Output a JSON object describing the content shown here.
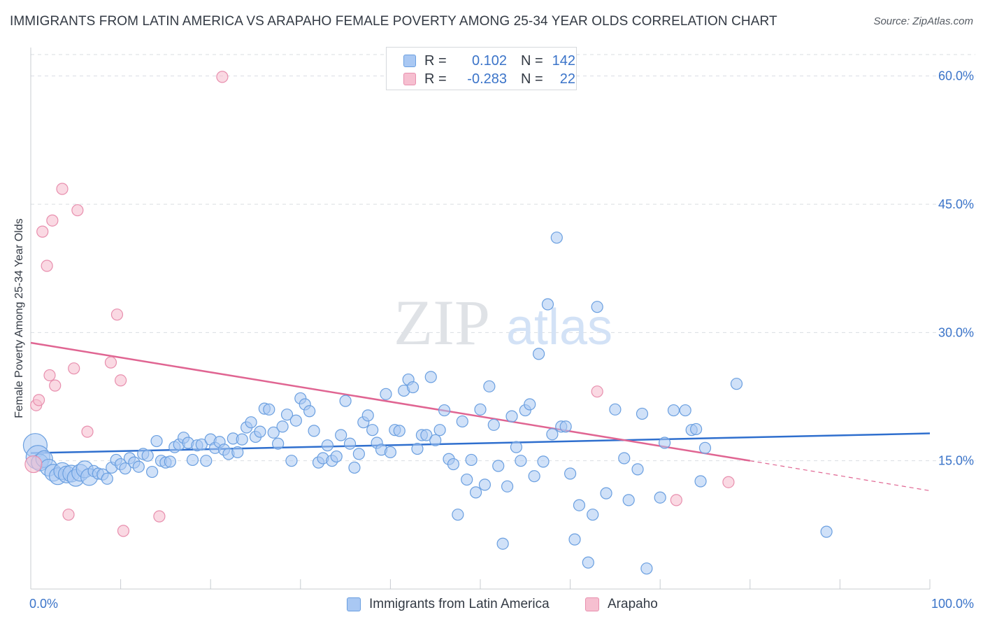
{
  "title": "IMMIGRANTS FROM LATIN AMERICA VS ARAPAHO FEMALE POVERTY AMONG 25-34 YEAR OLDS CORRELATION CHART",
  "source": "Source: ZipAtlas.com",
  "watermark": {
    "zip": "ZIP",
    "atlas": "atlas"
  },
  "legend": {
    "series1": {
      "r_label": "R =",
      "r_value": "0.102",
      "n_label": "N =",
      "n_value": "142"
    },
    "series2": {
      "r_label": "R =",
      "r_value": "-0.283",
      "n_label": "N =",
      "n_value": "22"
    }
  },
  "colors": {
    "blue_fill": "#a9c8f3",
    "blue_stroke": "#6a9fe0",
    "blue_line": "#2f6fce",
    "pink_fill": "#f6bfd0",
    "pink_stroke": "#e88fae",
    "pink_line": "#e06592",
    "axis_text": "#3b74c9",
    "grid": "#d9dde2"
  },
  "chart_data": {
    "type": "scatter",
    "title": "IMMIGRANTS FROM LATIN AMERICA VS ARAPAHO FEMALE POVERTY AMONG 25-34 YEAR OLDS CORRELATION CHART",
    "xlabel": "",
    "ylabel": "Female Poverty Among 25-34 Year Olds",
    "xlim": [
      0,
      100
    ],
    "ylim": [
      0,
      63
    ],
    "x_tick_labels": [
      {
        "value": 0,
        "label": "0.0%"
      },
      {
        "value": 100,
        "label": "100.0%"
      }
    ],
    "y_tick_labels": [
      {
        "value": 15,
        "label": "15.0%"
      },
      {
        "value": 30,
        "label": "30.0%"
      },
      {
        "value": 45,
        "label": "45.0%"
      },
      {
        "value": 60,
        "label": "60.0%"
      }
    ],
    "grid": "horizontal dashed",
    "legend_position": "top-center",
    "series": [
      {
        "name": "Immigrants from Latin America",
        "color": "#a9c8f3",
        "trend": {
          "x": [
            0,
            100
          ],
          "y": [
            15.9,
            18.2
          ],
          "style": "solid"
        },
        "points": [
          {
            "x": 0.5,
            "y": 16.8,
            "s": 3
          },
          {
            "x": 0.8,
            "y": 15.4,
            "s": 3
          },
          {
            "x": 1.0,
            "y": 14.8,
            "s": 2
          },
          {
            "x": 1.5,
            "y": 15.2,
            "s": 2
          },
          {
            "x": 2.0,
            "y": 14.2,
            "s": 2
          },
          {
            "x": 2.5,
            "y": 13.6,
            "s": 2
          },
          {
            "x": 3.0,
            "y": 13.2,
            "s": 2
          },
          {
            "x": 3.5,
            "y": 13.8,
            "s": 2
          },
          {
            "x": 4.0,
            "y": 13.4,
            "s": 2
          },
          {
            "x": 4.5,
            "y": 13.5,
            "s": 2
          },
          {
            "x": 5.0,
            "y": 13.0,
            "s": 2
          },
          {
            "x": 5.5,
            "y": 13.6,
            "s": 2
          },
          {
            "x": 6.0,
            "y": 14.0,
            "s": 2
          },
          {
            "x": 6.5,
            "y": 13.1,
            "s": 2
          },
          {
            "x": 7.0,
            "y": 13.8,
            "s": 1
          },
          {
            "x": 7.5,
            "y": 13.5,
            "s": 1
          },
          {
            "x": 8.0,
            "y": 13.4,
            "s": 1
          },
          {
            "x": 8.5,
            "y": 12.9,
            "s": 1
          },
          {
            "x": 9.0,
            "y": 14.2,
            "s": 1
          },
          {
            "x": 9.5,
            "y": 15.1,
            "s": 1
          },
          {
            "x": 10.0,
            "y": 14.6,
            "s": 1
          },
          {
            "x": 10.5,
            "y": 14.1,
            "s": 1
          },
          {
            "x": 11.0,
            "y": 15.3,
            "s": 1
          },
          {
            "x": 11.5,
            "y": 14.8,
            "s": 1
          },
          {
            "x": 12.0,
            "y": 14.3,
            "s": 1
          },
          {
            "x": 12.5,
            "y": 15.8,
            "s": 1
          },
          {
            "x": 13.0,
            "y": 15.6,
            "s": 1
          },
          {
            "x": 13.5,
            "y": 13.7,
            "s": 1
          },
          {
            "x": 14.0,
            "y": 17.3,
            "s": 1
          },
          {
            "x": 14.5,
            "y": 15.0,
            "s": 1
          },
          {
            "x": 15.0,
            "y": 14.8,
            "s": 1
          },
          {
            "x": 15.5,
            "y": 14.9,
            "s": 1
          },
          {
            "x": 16.0,
            "y": 16.6,
            "s": 1
          },
          {
            "x": 16.5,
            "y": 16.9,
            "s": 1
          },
          {
            "x": 17.0,
            "y": 17.7,
            "s": 1
          },
          {
            "x": 17.5,
            "y": 17.1,
            "s": 1
          },
          {
            "x": 18.0,
            "y": 15.1,
            "s": 1
          },
          {
            "x": 18.5,
            "y": 16.8,
            "s": 1
          },
          {
            "x": 19.0,
            "y": 16.9,
            "s": 1
          },
          {
            "x": 19.5,
            "y": 15.0,
            "s": 1
          },
          {
            "x": 20.0,
            "y": 17.5,
            "s": 1
          },
          {
            "x": 20.5,
            "y": 16.5,
            "s": 1
          },
          {
            "x": 21.0,
            "y": 17.2,
            "s": 1
          },
          {
            "x": 21.5,
            "y": 16.3,
            "s": 1
          },
          {
            "x": 22.0,
            "y": 15.8,
            "s": 1
          },
          {
            "x": 22.5,
            "y": 17.6,
            "s": 1
          },
          {
            "x": 23.0,
            "y": 16.0,
            "s": 1
          },
          {
            "x": 23.5,
            "y": 17.5,
            "s": 1
          },
          {
            "x": 24.0,
            "y": 18.9,
            "s": 1
          },
          {
            "x": 24.5,
            "y": 19.5,
            "s": 1
          },
          {
            "x": 25.0,
            "y": 17.8,
            "s": 1
          },
          {
            "x": 25.5,
            "y": 18.4,
            "s": 1
          },
          {
            "x": 26.0,
            "y": 21.1,
            "s": 1
          },
          {
            "x": 26.5,
            "y": 21.0,
            "s": 1
          },
          {
            "x": 27.0,
            "y": 18.3,
            "s": 1
          },
          {
            "x": 27.5,
            "y": 17.0,
            "s": 1
          },
          {
            "x": 28.0,
            "y": 19.0,
            "s": 1
          },
          {
            "x": 28.5,
            "y": 20.4,
            "s": 1
          },
          {
            "x": 29.0,
            "y": 15.0,
            "s": 1
          },
          {
            "x": 29.5,
            "y": 19.7,
            "s": 1
          },
          {
            "x": 30.0,
            "y": 22.3,
            "s": 1
          },
          {
            "x": 30.5,
            "y": 21.6,
            "s": 1
          },
          {
            "x": 31.0,
            "y": 20.8,
            "s": 1
          },
          {
            "x": 31.5,
            "y": 18.5,
            "s": 1
          },
          {
            "x": 32.0,
            "y": 14.8,
            "s": 1
          },
          {
            "x": 32.5,
            "y": 15.3,
            "s": 1
          },
          {
            "x": 33.0,
            "y": 16.8,
            "s": 1
          },
          {
            "x": 33.5,
            "y": 15.0,
            "s": 1
          },
          {
            "x": 34.0,
            "y": 15.5,
            "s": 1
          },
          {
            "x": 34.5,
            "y": 18.0,
            "s": 1
          },
          {
            "x": 35.0,
            "y": 22.0,
            "s": 1
          },
          {
            "x": 35.5,
            "y": 17.0,
            "s": 1
          },
          {
            "x": 36.0,
            "y": 14.2,
            "s": 1
          },
          {
            "x": 36.5,
            "y": 15.8,
            "s": 1
          },
          {
            "x": 37.0,
            "y": 19.5,
            "s": 1
          },
          {
            "x": 37.5,
            "y": 20.3,
            "s": 1
          },
          {
            "x": 38.0,
            "y": 18.6,
            "s": 1
          },
          {
            "x": 38.5,
            "y": 17.1,
            "s": 1
          },
          {
            "x": 39.0,
            "y": 16.3,
            "s": 1
          },
          {
            "x": 39.5,
            "y": 22.8,
            "s": 1
          },
          {
            "x": 40.0,
            "y": 16.0,
            "s": 1
          },
          {
            "x": 40.5,
            "y": 18.6,
            "s": 1
          },
          {
            "x": 41.0,
            "y": 18.5,
            "s": 1
          },
          {
            "x": 41.5,
            "y": 23.2,
            "s": 1
          },
          {
            "x": 42.0,
            "y": 24.5,
            "s": 1
          },
          {
            "x": 42.5,
            "y": 23.6,
            "s": 1
          },
          {
            "x": 43.0,
            "y": 16.4,
            "s": 1
          },
          {
            "x": 43.5,
            "y": 18.0,
            "s": 1
          },
          {
            "x": 44.0,
            "y": 18.0,
            "s": 1
          },
          {
            "x": 44.5,
            "y": 24.8,
            "s": 1
          },
          {
            "x": 45.0,
            "y": 17.4,
            "s": 1
          },
          {
            "x": 45.5,
            "y": 18.6,
            "s": 1
          },
          {
            "x": 46.0,
            "y": 20.9,
            "s": 1
          },
          {
            "x": 46.5,
            "y": 15.2,
            "s": 1
          },
          {
            "x": 47.0,
            "y": 14.6,
            "s": 1
          },
          {
            "x": 47.5,
            "y": 8.7,
            "s": 1
          },
          {
            "x": 48.0,
            "y": 19.6,
            "s": 1
          },
          {
            "x": 48.5,
            "y": 12.8,
            "s": 1
          },
          {
            "x": 49.0,
            "y": 15.1,
            "s": 1
          },
          {
            "x": 49.5,
            "y": 11.3,
            "s": 1
          },
          {
            "x": 50.0,
            "y": 21.0,
            "s": 1
          },
          {
            "x": 50.5,
            "y": 12.2,
            "s": 1
          },
          {
            "x": 51.0,
            "y": 23.7,
            "s": 1
          },
          {
            "x": 51.5,
            "y": 19.2,
            "s": 1
          },
          {
            "x": 52.0,
            "y": 14.4,
            "s": 1
          },
          {
            "x": 52.5,
            "y": 5.3,
            "s": 1
          },
          {
            "x": 53.0,
            "y": 12.0,
            "s": 1
          },
          {
            "x": 53.5,
            "y": 20.2,
            "s": 1
          },
          {
            "x": 54.0,
            "y": 16.6,
            "s": 1
          },
          {
            "x": 54.5,
            "y": 15.0,
            "s": 1
          },
          {
            "x": 55.0,
            "y": 20.9,
            "s": 1
          },
          {
            "x": 55.5,
            "y": 21.6,
            "s": 1
          },
          {
            "x": 56.0,
            "y": 13.2,
            "s": 1
          },
          {
            "x": 56.5,
            "y": 27.5,
            "s": 1
          },
          {
            "x": 57.0,
            "y": 14.9,
            "s": 1
          },
          {
            "x": 57.5,
            "y": 33.3,
            "s": 1
          },
          {
            "x": 58.0,
            "y": 18.1,
            "s": 1
          },
          {
            "x": 58.5,
            "y": 41.1,
            "s": 1
          },
          {
            "x": 59.0,
            "y": 19.0,
            "s": 1
          },
          {
            "x": 59.5,
            "y": 19.0,
            "s": 1
          },
          {
            "x": 60.0,
            "y": 13.5,
            "s": 1
          },
          {
            "x": 60.5,
            "y": 5.8,
            "s": 1
          },
          {
            "x": 61.0,
            "y": 9.8,
            "s": 1
          },
          {
            "x": 62.0,
            "y": 3.1,
            "s": 1
          },
          {
            "x": 62.5,
            "y": 8.7,
            "s": 1
          },
          {
            "x": 63.0,
            "y": 33.0,
            "s": 1
          },
          {
            "x": 64.0,
            "y": 11.2,
            "s": 1
          },
          {
            "x": 65.0,
            "y": 21.0,
            "s": 1
          },
          {
            "x": 66.0,
            "y": 15.3,
            "s": 1
          },
          {
            "x": 66.5,
            "y": 10.4,
            "s": 1
          },
          {
            "x": 67.5,
            "y": 14.0,
            "s": 1
          },
          {
            "x": 68.0,
            "y": 20.5,
            "s": 1
          },
          {
            "x": 68.5,
            "y": 2.4,
            "s": 1
          },
          {
            "x": 70.0,
            "y": 10.7,
            "s": 1
          },
          {
            "x": 70.5,
            "y": 17.1,
            "s": 1
          },
          {
            "x": 71.5,
            "y": 20.9,
            "s": 1
          },
          {
            "x": 72.8,
            "y": 20.9,
            "s": 1
          },
          {
            "x": 73.5,
            "y": 18.6,
            "s": 1
          },
          {
            "x": 74.0,
            "y": 18.7,
            "s": 1
          },
          {
            "x": 74.5,
            "y": 12.6,
            "s": 1
          },
          {
            "x": 75.0,
            "y": 16.5,
            "s": 1
          },
          {
            "x": 78.5,
            "y": 24.0,
            "s": 1
          },
          {
            "x": 88.5,
            "y": 6.7,
            "s": 1
          }
        ]
      },
      {
        "name": "Arapaho",
        "color": "#f6bfd0",
        "trend": {
          "x": [
            0,
            80,
            100
          ],
          "y": [
            28.8,
            15.0,
            11.5
          ],
          "style": "solid to 80, dashed after"
        },
        "points": [
          {
            "x": 0.3,
            "y": 14.6,
            "s": 2
          },
          {
            "x": 0.6,
            "y": 21.5,
            "s": 1
          },
          {
            "x": 0.9,
            "y": 22.1,
            "s": 1
          },
          {
            "x": 1.3,
            "y": 41.8,
            "s": 1
          },
          {
            "x": 1.8,
            "y": 37.8,
            "s": 1
          },
          {
            "x": 2.1,
            "y": 25.0,
            "s": 1
          },
          {
            "x": 2.4,
            "y": 43.1,
            "s": 1
          },
          {
            "x": 2.7,
            "y": 23.8,
            "s": 1
          },
          {
            "x": 3.5,
            "y": 46.8,
            "s": 1
          },
          {
            "x": 4.2,
            "y": 8.7,
            "s": 1
          },
          {
            "x": 4.8,
            "y": 25.8,
            "s": 1
          },
          {
            "x": 5.2,
            "y": 44.3,
            "s": 1
          },
          {
            "x": 6.3,
            "y": 18.4,
            "s": 1
          },
          {
            "x": 8.9,
            "y": 26.5,
            "s": 1
          },
          {
            "x": 9.6,
            "y": 32.1,
            "s": 1
          },
          {
            "x": 10.0,
            "y": 24.4,
            "s": 1
          },
          {
            "x": 10.3,
            "y": 6.8,
            "s": 1
          },
          {
            "x": 14.3,
            "y": 8.5,
            "s": 1
          },
          {
            "x": 21.3,
            "y": 59.9,
            "s": 1
          },
          {
            "x": 63.0,
            "y": 23.1,
            "s": 1
          },
          {
            "x": 71.8,
            "y": 10.4,
            "s": 1
          },
          {
            "x": 77.6,
            "y": 12.5,
            "s": 1
          }
        ]
      }
    ]
  },
  "bottom_legend": {
    "item1": "Immigrants from Latin America",
    "item2": "Arapaho"
  }
}
